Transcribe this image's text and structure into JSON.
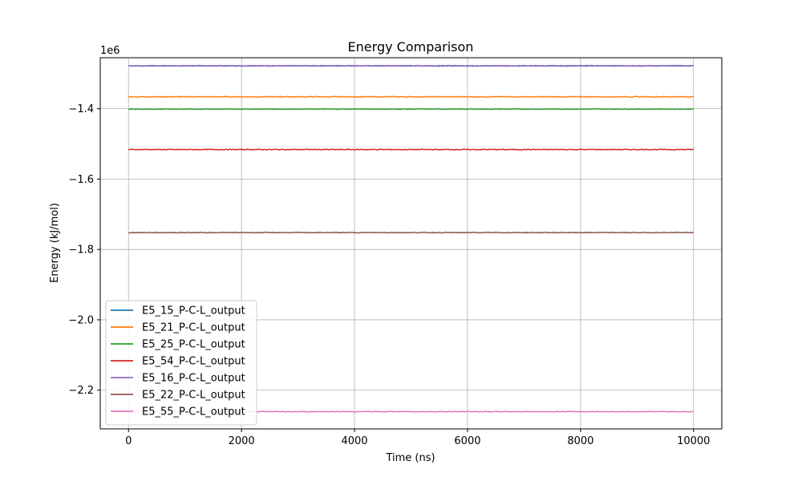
{
  "chart_data": {
    "type": "line",
    "title": "Energy Comparison",
    "xlabel": "Time (ns)",
    "ylabel": "Energy (kJ/mol)",
    "y_offset_label": "1e6",
    "xlim": [
      -500,
      10500
    ],
    "ylim": [
      -2.31,
      -1.255
    ],
    "x_ticks": [
      0,
      2000,
      4000,
      6000,
      8000,
      10000
    ],
    "x_tick_labels": [
      "0",
      "2000",
      "4000",
      "6000",
      "8000",
      "10000"
    ],
    "y_ticks": [
      -1.4,
      -1.6,
      -1.8,
      -2.0,
      -2.2
    ],
    "y_tick_labels": [
      "−1.4",
      "−1.6",
      "−1.8",
      "−2.0",
      "−2.2"
    ],
    "grid": true,
    "legend_position": "lower-left",
    "x_start": 0,
    "x_end": 10000,
    "series": [
      {
        "name": "E5_15_P-C-L_output",
        "color": "#1f77b4",
        "mean": -1.278,
        "noise": 0.002
      },
      {
        "name": "E5_21_P-C-L_output",
        "color": "#ff7f0e",
        "mean": -1.366,
        "noise": 0.002
      },
      {
        "name": "E5_25_P-C-L_output",
        "color": "#2ca02c",
        "mean": -1.401,
        "noise": 0.002
      },
      {
        "name": "E5_54_P-C-L_output",
        "color": "#d62728",
        "mean": -1.516,
        "noise": 0.002
      },
      {
        "name": "E5_16_P-C-L_output",
        "color": "#9467bd",
        "mean": -1.278,
        "noise": 0.002
      },
      {
        "name": "E5_22_P-C-L_output",
        "color": "#8c564b",
        "mean": -1.752,
        "noise": 0.002
      },
      {
        "name": "E5_55_P-C-L_output",
        "color": "#e377c2",
        "mean": -2.261,
        "noise": 0.002
      }
    ]
  }
}
